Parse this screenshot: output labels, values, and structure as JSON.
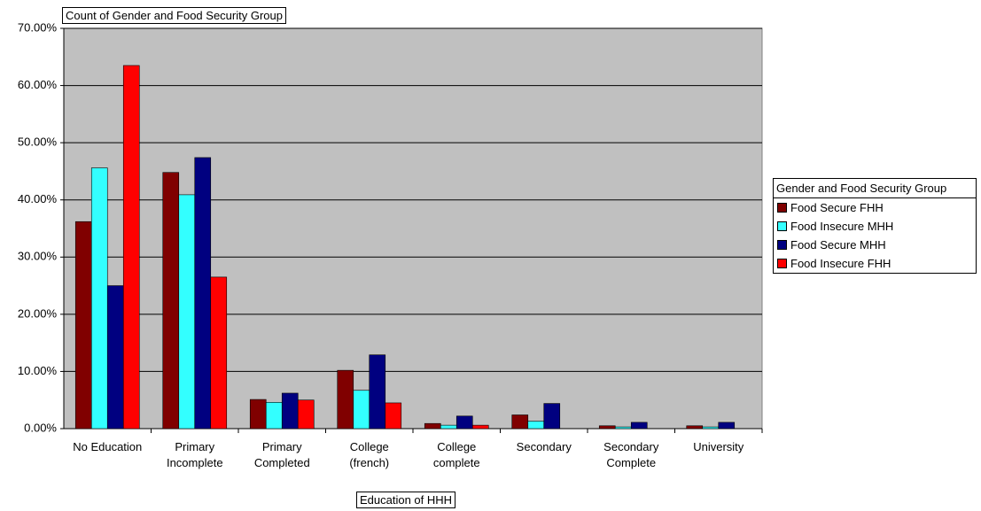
{
  "chart_data": {
    "type": "bar",
    "title": "Count of Gender and Food Security Group",
    "x_label": "Education of HHH",
    "legend_title": "Gender and Food Security Group",
    "categories": [
      "No Education",
      "Primary\nIncomplete",
      "Primary\nCompleted",
      "College\n(french)",
      "College\ncomplete",
      "Secondary",
      "Secondary\nComplete",
      "University"
    ],
    "series": [
      {
        "name": "Food Secure FHH",
        "color": "#800000",
        "values": [
          36.2,
          44.8,
          5.1,
          10.2,
          0.9,
          2.4,
          0.5,
          0.5
        ]
      },
      {
        "name": "Food Insecure MHH",
        "color": "#33ffff",
        "values": [
          45.6,
          40.9,
          4.6,
          6.7,
          0.6,
          1.3,
          0.3,
          0.3
        ]
      },
      {
        "name": "Food Secure MHH",
        "color": "#000080",
        "values": [
          25.0,
          47.4,
          6.2,
          12.9,
          2.2,
          4.4,
          1.1,
          1.1
        ]
      },
      {
        "name": "Food Insecure FHH",
        "color": "#ff0000",
        "values": [
          63.5,
          26.5,
          5.0,
          4.5,
          0.6,
          0,
          0,
          0
        ]
      }
    ],
    "ylim": [
      0,
      70
    ],
    "yticks": [
      {
        "value": 0,
        "label": "0.00%"
      },
      {
        "value": 10,
        "label": "10.00%"
      },
      {
        "value": 20,
        "label": "20.00%"
      },
      {
        "value": 30,
        "label": "30.00%"
      },
      {
        "value": 40,
        "label": "40.00%"
      },
      {
        "value": 50,
        "label": "50.00%"
      },
      {
        "value": 60,
        "label": "60.00%"
      },
      {
        "value": 70,
        "label": "70.00%"
      }
    ],
    "grid": true,
    "plot_background": "#c0c0c0",
    "legend_position": "right"
  }
}
